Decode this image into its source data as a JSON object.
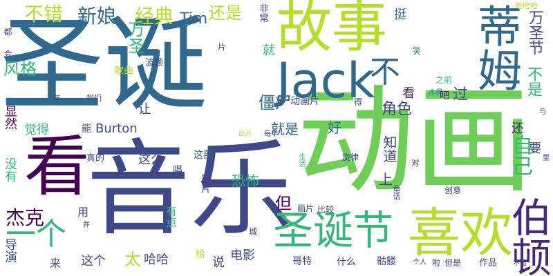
{
  "palette": {
    "purple": "#440154",
    "indigo": "#482878",
    "blue": "#3e4989",
    "teal_blue": "#31688e",
    "teal": "#26828e",
    "green_teal": "#1f9e89",
    "green": "#35b779",
    "lime": "#6ece58",
    "yellow_green": "#b5de2b",
    "yellow": "#fde725"
  },
  "words": [
    "圣诞",
    "动画",
    "音乐",
    "故事",
    "喜欢",
    "看",
    "蒂姆",
    "Jack",
    "圣诞节",
    "伯顿",
    "一个",
    "杰克",
    "不错",
    "新娘",
    "经典",
    "还是",
    "Tim",
    "非常",
    "挺",
    "哈哈哈",
    "万圣节",
    "万圣",
    "风格",
    "不",
    "就",
    "片",
    "笑",
    "我们",
    "年",
    "歌曲",
    "波顿",
    "之前",
    "木偶",
    "吧",
    "过",
    "不是",
    "自己",
    "要",
    "还",
    "看",
    "僵尸",
    "写",
    "动画片",
    "角色",
    "Burton",
    "就是",
    "好",
    "觉得",
    "让",
    "这么",
    "这部",
    "真的",
    "每年",
    "此片",
    "能",
    "显然",
    "没有",
    "恐怖",
    "影片",
    "唱",
    "生活",
    "上",
    "知道",
    "旋律",
    "童话",
    "对",
    "创意",
    "里",
    "有点",
    "但",
    "用",
    "城",
    "画片",
    "比较",
    "并",
    "导演",
    "来",
    "这个",
    "太",
    "哈哈",
    "给",
    "说",
    "电影",
    "哥特",
    "什么",
    "骷髅",
    "个人",
    "啦",
    "但是",
    "作品",
    "不知",
    "会",
    "都",
    "与",
    "得"
  ]
}
